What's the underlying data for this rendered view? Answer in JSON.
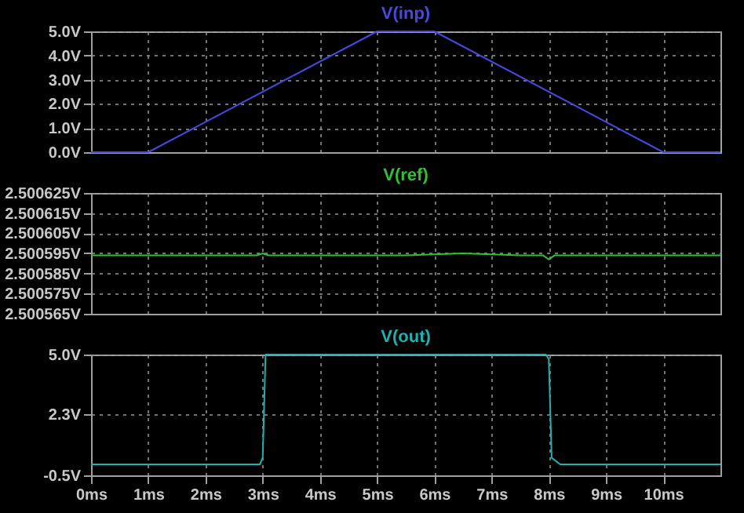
{
  "chart_data": [
    {
      "type": "line",
      "title": "V(inp)",
      "x": [
        0,
        1,
        5,
        6,
        10,
        11
      ],
      "values": [
        0,
        0,
        5,
        5,
        0,
        0
      ],
      "color": "#4848e0",
      "xlim": [
        0,
        11
      ],
      "xticks": [
        0,
        1,
        2,
        3,
        4,
        5,
        6,
        7,
        8,
        9,
        10
      ],
      "ylim": [
        0,
        5
      ],
      "yticks": [
        {
          "value": 0,
          "label": "0.0V"
        },
        {
          "value": 1,
          "label": "1.0V"
        },
        {
          "value": 2,
          "label": "2.0V"
        },
        {
          "value": 3,
          "label": "3.0V"
        },
        {
          "value": 4,
          "label": "4.0V"
        },
        {
          "value": 5,
          "label": "5.0V"
        }
      ],
      "grid": true,
      "tick_labels": "y"
    },
    {
      "type": "line",
      "title": "V(ref)",
      "x": [
        0,
        2.9,
        3.0,
        3.1,
        5.5,
        6.5,
        7.5,
        7.9,
        8.0,
        8.1,
        11
      ],
      "values": [
        2.500594,
        2.500594,
        2.500595,
        2.500594,
        2.500594,
        2.500595,
        2.500594,
        2.500594,
        2.500592,
        2.500594,
        2.500594
      ],
      "color": "#30c030",
      "xlim": [
        0,
        11
      ],
      "xticks": [
        0,
        1,
        2,
        3,
        4,
        5,
        6,
        7,
        8,
        9,
        10
      ],
      "ylim": [
        2.500565,
        2.500625
      ],
      "yticks": [
        {
          "value": 2.500565,
          "label": "2.500565V"
        },
        {
          "value": 2.500575,
          "label": "2.500575V"
        },
        {
          "value": 2.500585,
          "label": "2.500585V"
        },
        {
          "value": 2.500595,
          "label": "2.500595V"
        },
        {
          "value": 2.500605,
          "label": "2.500605V"
        },
        {
          "value": 2.500615,
          "label": "2.500615V"
        },
        {
          "value": 2.500625,
          "label": "2.500625V"
        }
      ],
      "grid": true,
      "tick_labels": "y"
    },
    {
      "type": "line",
      "title": "V(out)",
      "x": [
        0,
        2.95,
        3.0,
        3.05,
        7.95,
        8.0,
        8.05,
        8.2,
        11
      ],
      "values": [
        0,
        0,
        0.3,
        5,
        5,
        4.8,
        0.3,
        0,
        0
      ],
      "color": "#20b0b0",
      "xlim": [
        0,
        11
      ],
      "xticks": [
        {
          "value": 0,
          "label": "0ms"
        },
        {
          "value": 1,
          "label": "1ms"
        },
        {
          "value": 2,
          "label": "2ms"
        },
        {
          "value": 3,
          "label": "3ms"
        },
        {
          "value": 4,
          "label": "4ms"
        },
        {
          "value": 5,
          "label": "5ms"
        },
        {
          "value": 6,
          "label": "6ms"
        },
        {
          "value": 7,
          "label": "7ms"
        },
        {
          "value": 8,
          "label": "8ms"
        },
        {
          "value": 9,
          "label": "9ms"
        },
        {
          "value": 10,
          "label": "10ms"
        }
      ],
      "ylim": [
        -0.5,
        5
      ],
      "yticks": [
        {
          "value": -0.5,
          "label": "-0.5V"
        },
        {
          "value": 2.3,
          "label": "2.3V"
        },
        {
          "value": 5,
          "label": "5.0V"
        }
      ],
      "grid": true
    }
  ]
}
